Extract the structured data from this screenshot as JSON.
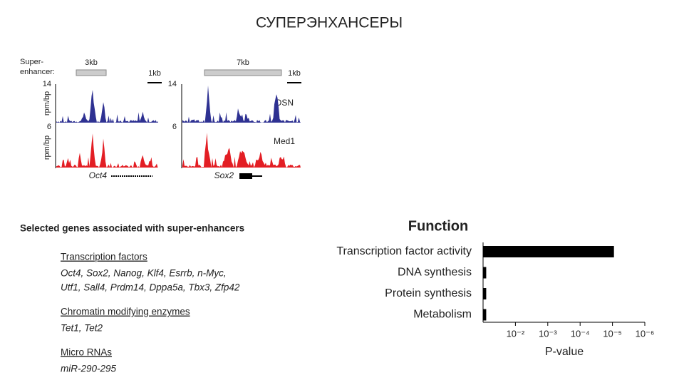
{
  "title": "СУПЕРЭНХАНСЕРЫ",
  "tracks": {
    "super_label": [
      "Super-",
      "enhancer:"
    ],
    "left": {
      "span": "3kb",
      "scale": "1kb",
      "ymax_top": 14,
      "ymax_bottom": 6,
      "ylabel": [
        "rpm/bp",
        "rpm/bp"
      ],
      "gene": "Oct4"
    },
    "right": {
      "span": "7kb",
      "scale": "1kb",
      "ymax_top": 14,
      "ymax_bottom": 6,
      "gene": "Sox2",
      "series": [
        "OSN",
        "Med1"
      ]
    }
  },
  "genes": {
    "heading": "Selected genes associated with super-enhancers",
    "groups": [
      {
        "name": "Transcription factors",
        "lines": [
          "Oct4, Sox2, Nanog, Klf4, Esrrb, n-Myc,",
          "Utf1,  Sall4, Prdm14, Dppa5a, Tbx3, Zfp42"
        ]
      },
      {
        "name": "Chromatin modifying enzymes",
        "lines": [
          "Tet1, Tet2"
        ]
      },
      {
        "name": "Micro RNAs",
        "lines": [
          "miR-290-295"
        ]
      }
    ]
  },
  "chart_data": {
    "type": "bar",
    "orientation": "horizontal",
    "title": "Function",
    "categories": [
      "Transcription factor activity",
      "DNA synthesis",
      "Protein synthesis",
      "Metabolism"
    ],
    "values": [
      9e-06,
      0.08,
      0.08,
      0.08
    ],
    "color": "#000000",
    "log": true,
    "xlim": [
      0.1,
      1e-06
    ],
    "xticks": [
      {
        "value": 0.01,
        "label": "10⁻²"
      },
      {
        "value": 0.001,
        "label": "10⁻³"
      },
      {
        "value": 0.0001,
        "label": "10⁻⁴"
      },
      {
        "value": 1e-05,
        "label": "10⁻⁵"
      },
      {
        "value": 1e-06,
        "label": "10⁻⁶"
      }
    ],
    "xlabel": "P-value"
  }
}
